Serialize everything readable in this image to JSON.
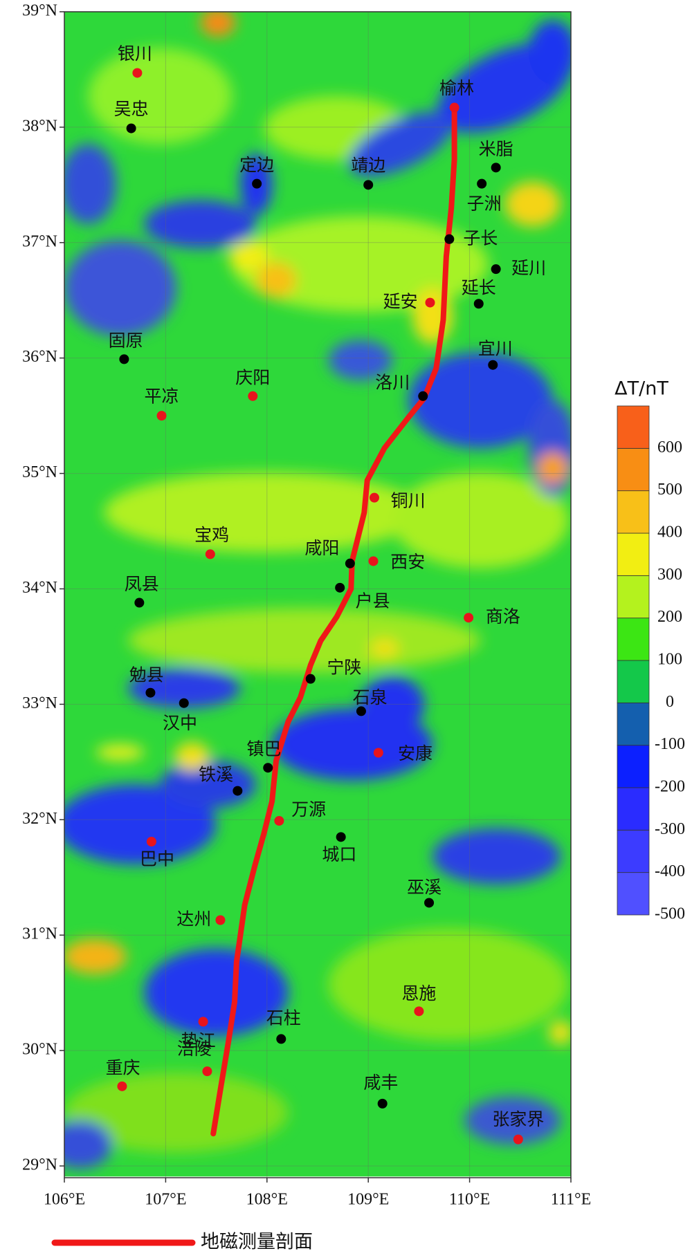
{
  "map": {
    "lat_ticks": [
      {
        "value": 39,
        "label": "39°N"
      },
      {
        "value": 38,
        "label": "38°N"
      },
      {
        "value": 37,
        "label": "37°N"
      },
      {
        "value": 36,
        "label": "36°N"
      },
      {
        "value": 35,
        "label": "35°N"
      },
      {
        "value": 34,
        "label": "34°N"
      },
      {
        "value": 33,
        "label": "33°N"
      },
      {
        "value": 32,
        "label": "32°N"
      },
      {
        "value": 31,
        "label": "31°N"
      },
      {
        "value": 30,
        "label": "30°N"
      },
      {
        "value": 29,
        "label": "29°N"
      }
    ],
    "lon_ticks": [
      {
        "value": 106,
        "label": "106°E"
      },
      {
        "value": 107,
        "label": "107°E"
      },
      {
        "value": 108,
        "label": "108°E"
      },
      {
        "value": 109,
        "label": "109°E"
      },
      {
        "value": 110,
        "label": "110°E"
      },
      {
        "value": 111,
        "label": "111°E"
      }
    ],
    "cities": [
      {
        "name": "银川",
        "lon": 106.72,
        "lat": 38.47,
        "color": "#e8141c"
      },
      {
        "name": "吴忠",
        "lon": 106.66,
        "lat": 37.99,
        "color": "#000000"
      },
      {
        "name": "定边",
        "lon": 107.9,
        "lat": 37.51,
        "color": "#000000"
      },
      {
        "name": "靖边",
        "lon": 109.0,
        "lat": 37.5,
        "color": "#000000"
      },
      {
        "name": "榆林",
        "lon": 109.85,
        "lat": 38.17,
        "color": "#e8141c"
      },
      {
        "name": "米脂",
        "lon": 110.26,
        "lat": 37.65,
        "color": "#000000"
      },
      {
        "name": "子洲",
        "lon": 110.12,
        "lat": 37.51,
        "color": "#000000"
      },
      {
        "name": "子长",
        "lon": 109.8,
        "lat": 37.03,
        "color": "#000000"
      },
      {
        "name": "延川",
        "lon": 110.26,
        "lat": 36.77,
        "color": "#000000"
      },
      {
        "name": "延长",
        "lon": 110.09,
        "lat": 36.47,
        "color": "#000000"
      },
      {
        "name": "延安",
        "lon": 109.61,
        "lat": 36.48,
        "color": "#e8141c"
      },
      {
        "name": "宜川",
        "lon": 110.23,
        "lat": 35.94,
        "color": "#000000"
      },
      {
        "name": "固原",
        "lon": 106.59,
        "lat": 35.99,
        "color": "#000000"
      },
      {
        "name": "庆阳",
        "lon": 107.86,
        "lat": 35.67,
        "color": "#e8141c"
      },
      {
        "name": "平凉",
        "lon": 106.96,
        "lat": 35.5,
        "color": "#e8141c"
      },
      {
        "name": "洛川",
        "lon": 109.54,
        "lat": 35.67,
        "color": "#000000"
      },
      {
        "name": "铜川",
        "lon": 109.06,
        "lat": 34.79,
        "color": "#e8141c"
      },
      {
        "name": "宝鸡",
        "lon": 107.44,
        "lat": 34.3,
        "color": "#e8141c"
      },
      {
        "name": "咸阳",
        "lon": 108.82,
        "lat": 34.22,
        "color": "#000000"
      },
      {
        "name": "户县",
        "lon": 108.72,
        "lat": 34.01,
        "color": "#000000"
      },
      {
        "name": "西安",
        "lon": 109.05,
        "lat": 34.24,
        "color": "#e8141c"
      },
      {
        "name": "凤县",
        "lon": 106.74,
        "lat": 33.88,
        "color": "#000000"
      },
      {
        "name": "商洛",
        "lon": 109.99,
        "lat": 33.75,
        "color": "#e8141c"
      },
      {
        "name": "宁陕",
        "lon": 108.43,
        "lat": 33.22,
        "color": "#000000"
      },
      {
        "name": "勉县",
        "lon": 106.85,
        "lat": 33.1,
        "color": "#000000"
      },
      {
        "name": "汉中",
        "lon": 107.18,
        "lat": 33.01,
        "color": "#000000"
      },
      {
        "name": "石泉",
        "lon": 108.93,
        "lat": 32.94,
        "color": "#000000"
      },
      {
        "name": "镇巴",
        "lon": 108.01,
        "lat": 32.45,
        "color": "#000000"
      },
      {
        "name": "安康",
        "lon": 109.1,
        "lat": 32.58,
        "color": "#e8141c"
      },
      {
        "name": "铁溪",
        "lon": 107.71,
        "lat": 32.25,
        "color": "#000000"
      },
      {
        "name": "万源",
        "lon": 108.12,
        "lat": 31.99,
        "color": "#e8141c"
      },
      {
        "name": "城口",
        "lon": 108.73,
        "lat": 31.85,
        "color": "#000000"
      },
      {
        "name": "巴中",
        "lon": 106.86,
        "lat": 31.81,
        "color": "#e8141c"
      },
      {
        "name": "巫溪",
        "lon": 109.6,
        "lat": 31.28,
        "color": "#000000"
      },
      {
        "name": "达州",
        "lon": 107.54,
        "lat": 31.13,
        "color": "#e8141c"
      },
      {
        "name": "垫江",
        "lon": 107.37,
        "lat": 30.25,
        "color": "#e8141c"
      },
      {
        "name": "恩施",
        "lon": 109.5,
        "lat": 30.34,
        "color": "#e8141c"
      },
      {
        "name": "石柱",
        "lon": 108.14,
        "lat": 30.1,
        "color": "#000000"
      },
      {
        "name": "涪陵",
        "lon": 107.41,
        "lat": 29.82,
        "color": "#e8141c"
      },
      {
        "name": "重庆",
        "lon": 106.57,
        "lat": 29.69,
        "color": "#e8141c"
      },
      {
        "name": "咸丰",
        "lon": 109.14,
        "lat": 29.54,
        "color": "#000000"
      },
      {
        "name": "张家界",
        "lon": 110.48,
        "lat": 29.23,
        "color": "#e8141c"
      }
    ],
    "profile": {
      "name": "地磁测量剖面",
      "color": "#f01818",
      "lon": [
        109.85,
        109.85,
        109.82,
        109.77,
        109.74,
        109.67,
        109.55,
        109.4,
        109.16,
        108.99,
        108.96,
        108.84,
        108.83,
        108.69,
        108.53,
        108.43,
        108.33,
        108.21,
        108.09,
        108.05,
        107.97,
        107.88,
        107.78,
        107.7,
        107.68,
        107.62,
        107.54,
        107.47
      ],
      "lat": [
        38.17,
        37.72,
        37.3,
        36.88,
        36.33,
        35.91,
        35.65,
        35.49,
        35.22,
        34.94,
        34.66,
        34.24,
        34.0,
        33.76,
        33.55,
        33.34,
        33.06,
        32.85,
        32.51,
        32.16,
        31.88,
        31.6,
        31.26,
        30.77,
        30.42,
        30.08,
        29.66,
        29.28
      ]
    },
    "colorbar": {
      "label": "ΔT/nT",
      "lim": [
        -500,
        700
      ],
      "ticks": [
        -500,
        -400,
        -300,
        -200,
        -100,
        0,
        100,
        200,
        300,
        400,
        500,
        600
      ],
      "colors": [
        "#5050ff",
        "#3c3cff",
        "#2a2cff",
        "#0c20ff",
        "#145fae",
        "#14c84a",
        "#3ce614",
        "#b4f21e",
        "#f2ee12",
        "#f8c018",
        "#f88e14",
        "#f8601a"
      ]
    }
  }
}
